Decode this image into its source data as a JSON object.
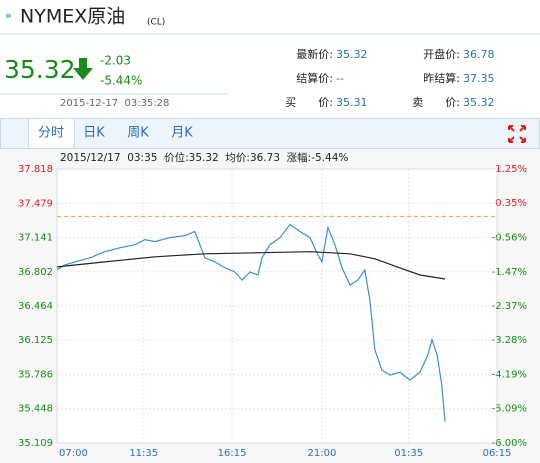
{
  "header": {
    "marker": "»",
    "title": "NYMEX原油",
    "code": "(CL)"
  },
  "quote": {
    "price": "35.32",
    "change": "-2.03",
    "change_pct": "-5.44%",
    "time": "2015-12-17  03:35:28"
  },
  "fields": [
    {
      "label": "最新价:",
      "value": "35.32"
    },
    {
      "label": "开盘价:",
      "value": "36.78"
    },
    {
      "label": "结算价:",
      "value": "--"
    },
    {
      "label": "昨结算:",
      "value": "37.35"
    },
    {
      "label": "买　　价:",
      "value": "35.31"
    },
    {
      "label": "卖　　价:",
      "value": "35.32"
    }
  ],
  "tabs": [
    "分时",
    "日K",
    "周K",
    "月K"
  ],
  "chart_data": {
    "type": "line",
    "subtitle": "2015/12/17  03:35  价位:35.32  均价:36.73  涨幅:-5.44%",
    "xlim": [
      0,
      1395
    ],
    "xticks": [
      {
        "value": 0,
        "label": "07:00"
      },
      {
        "value": 275,
        "label": "11:35"
      },
      {
        "value": 555,
        "label": "16:15"
      },
      {
        "value": 840,
        "label": "21:00"
      },
      {
        "value": 1115,
        "label": "01:35"
      },
      {
        "value": 1395,
        "label": "06:15"
      }
    ],
    "ylim": [
      35.109,
      37.818
    ],
    "yticks": [
      37.818,
      37.479,
      37.141,
      36.802,
      36.464,
      36.125,
      35.786,
      35.448,
      35.109
    ],
    "y2lim": [
      -6.0,
      1.25
    ],
    "y2ticks": [
      {
        "value": 1.25,
        "label": "1.25%"
      },
      {
        "value": 0.35,
        "label": "0.35%"
      },
      {
        "value": -0.56,
        "label": "-0.56%"
      },
      {
        "value": -1.47,
        "label": "-1.47%"
      },
      {
        "value": -2.37,
        "label": "-2.37%"
      },
      {
        "value": -3.28,
        "label": "-3.28%"
      },
      {
        "value": -4.19,
        "label": "-4.19%"
      },
      {
        "value": -5.09,
        "label": "-5.09%"
      },
      {
        "value": -6.0,
        "label": "-6.00%"
      }
    ],
    "reference": 37.35,
    "grid": true,
    "series": [
      {
        "name": "价位",
        "color": "#3a8fd6",
        "x": [
          0,
          25,
          57,
          105,
          152,
          200,
          247,
          279,
          311,
          358,
          406,
          437,
          453,
          469,
          501,
          533,
          564,
          587,
          612,
          637,
          650,
          675,
          707,
          739,
          770,
          802,
          827,
          840,
          859,
          881,
          904,
          929,
          954,
          976,
          992,
          1008,
          1030,
          1056,
          1087,
          1119,
          1151,
          1176,
          1189,
          1205,
          1220,
          1230
        ],
        "values": [
          36.82,
          36.87,
          36.9,
          36.94,
          37.0,
          37.04,
          37.07,
          37.12,
          37.1,
          37.14,
          37.16,
          37.2,
          37.07,
          36.94,
          36.9,
          36.84,
          36.8,
          36.72,
          36.8,
          36.77,
          36.94,
          37.07,
          37.14,
          37.27,
          37.2,
          37.14,
          36.97,
          36.9,
          37.24,
          37.07,
          36.84,
          36.67,
          36.72,
          36.82,
          36.52,
          36.03,
          35.83,
          35.78,
          35.81,
          35.73,
          35.81,
          35.98,
          36.13,
          35.98,
          35.68,
          35.32
        ]
      },
      {
        "name": "均价",
        "color": "#222222",
        "x": [
          0,
          152,
          311,
          469,
          650,
          802,
          929,
          1008,
          1087,
          1151,
          1230
        ],
        "values": [
          36.85,
          36.9,
          36.95,
          36.98,
          36.99,
          37.0,
          36.98,
          36.93,
          36.84,
          36.77,
          36.73
        ]
      }
    ]
  }
}
